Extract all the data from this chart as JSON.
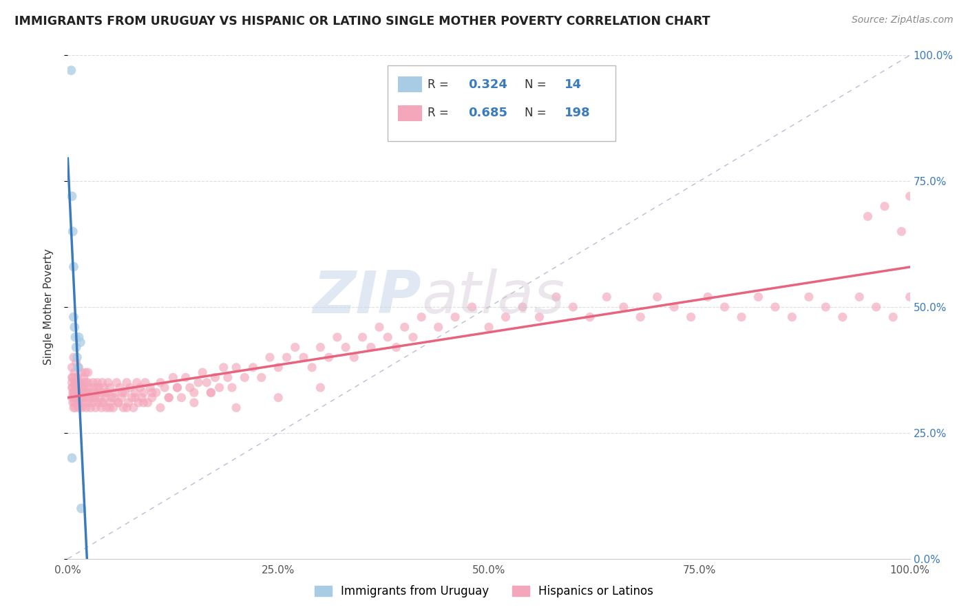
{
  "title": "IMMIGRANTS FROM URUGUAY VS HISPANIC OR LATINO SINGLE MOTHER POVERTY CORRELATION CHART",
  "source": "Source: ZipAtlas.com",
  "ylabel": "Single Mother Poverty",
  "xlim": [
    0.0,
    1.0
  ],
  "ylim": [
    0.0,
    1.0
  ],
  "ytick_labels": [
    "0.0%",
    "25.0%",
    "50.0%",
    "75.0%",
    "100.0%"
  ],
  "ytick_values": [
    0.0,
    0.25,
    0.5,
    0.75,
    1.0
  ],
  "xtick_labels": [
    "0.0%",
    "25.0%",
    "50.0%",
    "75.0%",
    "100.0%"
  ],
  "xtick_values": [
    0.0,
    0.25,
    0.5,
    0.75,
    1.0
  ],
  "blue_color": "#a8cce4",
  "pink_color": "#f4a7bb",
  "blue_line_color": "#3a7abf",
  "pink_line_color": "#e8637e",
  "diagonal_color": "#b0b8d0",
  "watermark_left": "ZIP",
  "watermark_right": "atlas",
  "blue_x": [
    0.004,
    0.005,
    0.006,
    0.007,
    0.007,
    0.008,
    0.009,
    0.01,
    0.011,
    0.012,
    0.013,
    0.015,
    0.016,
    0.005
  ],
  "blue_y": [
    0.97,
    0.72,
    0.65,
    0.58,
    0.48,
    0.46,
    0.44,
    0.42,
    0.4,
    0.38,
    0.44,
    0.43,
    0.1,
    0.2
  ],
  "pink_x": [
    0.005,
    0.005,
    0.005,
    0.005,
    0.006,
    0.006,
    0.006,
    0.007,
    0.007,
    0.007,
    0.008,
    0.008,
    0.008,
    0.009,
    0.009,
    0.01,
    0.01,
    0.01,
    0.01,
    0.011,
    0.011,
    0.012,
    0.012,
    0.013,
    0.013,
    0.014,
    0.014,
    0.015,
    0.015,
    0.016,
    0.016,
    0.017,
    0.018,
    0.019,
    0.02,
    0.02,
    0.021,
    0.022,
    0.023,
    0.024,
    0.025,
    0.025,
    0.026,
    0.027,
    0.028,
    0.03,
    0.03,
    0.031,
    0.032,
    0.033,
    0.034,
    0.035,
    0.036,
    0.037,
    0.038,
    0.04,
    0.04,
    0.041,
    0.042,
    0.043,
    0.045,
    0.046,
    0.047,
    0.048,
    0.05,
    0.05,
    0.052,
    0.054,
    0.056,
    0.058,
    0.06,
    0.062,
    0.064,
    0.066,
    0.068,
    0.07,
    0.072,
    0.074,
    0.076,
    0.078,
    0.08,
    0.082,
    0.084,
    0.086,
    0.088,
    0.09,
    0.092,
    0.095,
    0.098,
    0.1,
    0.105,
    0.11,
    0.115,
    0.12,
    0.125,
    0.13,
    0.135,
    0.14,
    0.145,
    0.15,
    0.155,
    0.16,
    0.165,
    0.17,
    0.175,
    0.18,
    0.185,
    0.19,
    0.195,
    0.2,
    0.21,
    0.22,
    0.23,
    0.24,
    0.25,
    0.26,
    0.27,
    0.28,
    0.29,
    0.3,
    0.31,
    0.32,
    0.33,
    0.34,
    0.35,
    0.36,
    0.37,
    0.38,
    0.39,
    0.4,
    0.41,
    0.42,
    0.44,
    0.46,
    0.48,
    0.5,
    0.52,
    0.54,
    0.56,
    0.58,
    0.6,
    0.62,
    0.64,
    0.66,
    0.68,
    0.7,
    0.72,
    0.74,
    0.76,
    0.78,
    0.8,
    0.82,
    0.84,
    0.86,
    0.88,
    0.9,
    0.92,
    0.94,
    0.96,
    0.98,
    1.0,
    0.95,
    0.97,
    0.99,
    1.0,
    0.005,
    0.006,
    0.007,
    0.008,
    0.009,
    0.01,
    0.011,
    0.012,
    0.013,
    0.014,
    0.015,
    0.016,
    0.017,
    0.018,
    0.019,
    0.02,
    0.021,
    0.022,
    0.023,
    0.024,
    0.03,
    0.035,
    0.04,
    0.045,
    0.05,
    0.055,
    0.06,
    0.065,
    0.07,
    0.08,
    0.09,
    0.1,
    0.11,
    0.12,
    0.13,
    0.15,
    0.17,
    0.2,
    0.25,
    0.3
  ],
  "pink_y": [
    0.36,
    0.34,
    0.32,
    0.35,
    0.33,
    0.31,
    0.34,
    0.3,
    0.33,
    0.32,
    0.31,
    0.35,
    0.33,
    0.3,
    0.32,
    0.34,
    0.36,
    0.31,
    0.33,
    0.32,
    0.35,
    0.31,
    0.33,
    0.34,
    0.3,
    0.32,
    0.35,
    0.31,
    0.33,
    0.34,
    0.32,
    0.3,
    0.33,
    0.35,
    0.31,
    0.34,
    0.32,
    0.3,
    0.33,
    0.35,
    0.31,
    0.34,
    0.32,
    0.3,
    0.33,
    0.35,
    0.31,
    0.34,
    0.32,
    0.3,
    0.33,
    0.35,
    0.31,
    0.34,
    0.32,
    0.3,
    0.33,
    0.35,
    0.31,
    0.34,
    0.32,
    0.3,
    0.33,
    0.35,
    0.31,
    0.34,
    0.32,
    0.3,
    0.33,
    0.35,
    0.31,
    0.34,
    0.32,
    0.3,
    0.33,
    0.35,
    0.31,
    0.34,
    0.32,
    0.3,
    0.33,
    0.35,
    0.31,
    0.34,
    0.32,
    0.33,
    0.35,
    0.31,
    0.34,
    0.32,
    0.33,
    0.35,
    0.34,
    0.32,
    0.36,
    0.34,
    0.32,
    0.36,
    0.34,
    0.33,
    0.35,
    0.37,
    0.35,
    0.33,
    0.36,
    0.34,
    0.38,
    0.36,
    0.34,
    0.38,
    0.36,
    0.38,
    0.36,
    0.4,
    0.38,
    0.4,
    0.42,
    0.4,
    0.38,
    0.42,
    0.4,
    0.44,
    0.42,
    0.4,
    0.44,
    0.42,
    0.46,
    0.44,
    0.42,
    0.46,
    0.44,
    0.48,
    0.46,
    0.48,
    0.5,
    0.46,
    0.48,
    0.5,
    0.48,
    0.52,
    0.5,
    0.48,
    0.52,
    0.5,
    0.48,
    0.52,
    0.5,
    0.48,
    0.52,
    0.5,
    0.48,
    0.52,
    0.5,
    0.48,
    0.52,
    0.5,
    0.48,
    0.52,
    0.5,
    0.48,
    0.52,
    0.68,
    0.7,
    0.65,
    0.72,
    0.38,
    0.36,
    0.4,
    0.37,
    0.35,
    0.39,
    0.36,
    0.34,
    0.38,
    0.35,
    0.33,
    0.37,
    0.34,
    0.32,
    0.36,
    0.33,
    0.37,
    0.35,
    0.33,
    0.37,
    0.32,
    0.34,
    0.31,
    0.33,
    0.3,
    0.32,
    0.31,
    0.33,
    0.3,
    0.32,
    0.31,
    0.33,
    0.3,
    0.32,
    0.34,
    0.31,
    0.33,
    0.3,
    0.32,
    0.34
  ]
}
